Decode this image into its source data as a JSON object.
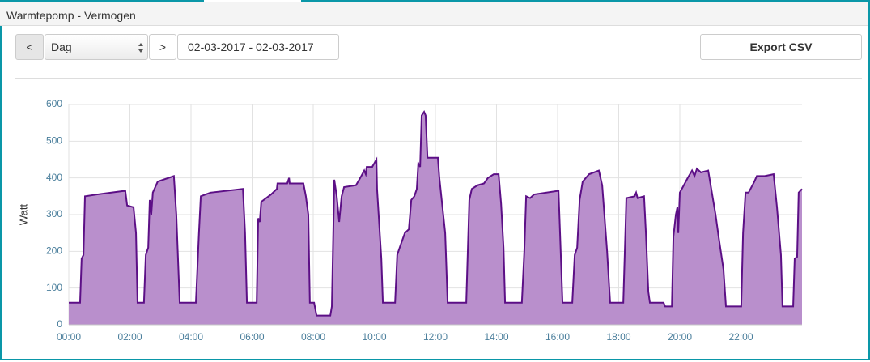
{
  "header": {
    "title": "Warmtepomp - Vermogen"
  },
  "controls": {
    "prev": "<",
    "period": "Dag",
    "next": ">",
    "date_range": "02-03-2017 - 02-03-2017",
    "export": "Export CSV"
  },
  "chart_data": {
    "type": "area",
    "ylabel": "Watt",
    "color": "#5c0f86",
    "fill": "#b98fcc",
    "grid": true,
    "xlim": [
      0,
      24
    ],
    "ylim": [
      0,
      600
    ],
    "yticks": [
      0,
      100,
      200,
      300,
      400,
      500,
      600
    ],
    "xticks": [
      {
        "value": 0,
        "label": "00:00"
      },
      {
        "value": 2,
        "label": "02:00"
      },
      {
        "value": 4,
        "label": "04:00"
      },
      {
        "value": 6,
        "label": "06:00"
      },
      {
        "value": 8,
        "label": "08:00"
      },
      {
        "value": 10,
        "label": "10:00"
      },
      {
        "value": 12,
        "label": "12:00"
      },
      {
        "value": 14,
        "label": "14:00"
      },
      {
        "value": 16,
        "label": "16:00"
      },
      {
        "value": 18,
        "label": "18:00"
      },
      {
        "value": 20,
        "label": "20:00"
      },
      {
        "value": 22,
        "label": "22:00"
      }
    ],
    "x": [
      0,
      0.37,
      0.42,
      0.48,
      0.53,
      0.93,
      1.85,
      1.91,
      2.12,
      2.2,
      2.25,
      2.46,
      2.52,
      2.6,
      2.65,
      2.7,
      2.75,
      2.91,
      3.44,
      3.52,
      3.63,
      4.16,
      4.26,
      4.32,
      4.64,
      5.7,
      5.77,
      5.83,
      6.15,
      6.2,
      6.25,
      6.3,
      6.62,
      6.81,
      6.83,
      7.15,
      7.21,
      7.23,
      7.68,
      7.76,
      7.84,
      7.89,
      8.03,
      8.11,
      8.56,
      8.61,
      8.69,
      8.77,
      8.85,
      8.93,
      9.01,
      9.4,
      9.54,
      9.67,
      9.72,
      9.75,
      9.93,
      10.07,
      10.09,
      10.23,
      10.28,
      10.68,
      10.75,
      10.83,
      11.0,
      11.13,
      11.21,
      11.31,
      11.39,
      11.44,
      11.5,
      11.55,
      11.63,
      11.68,
      11.74,
      12.08,
      12.13,
      12.32,
      12.4,
      13.01,
      13.06,
      13.11,
      13.19,
      13.38,
      13.59,
      13.72,
      13.91,
      14.07,
      14.15,
      14.23,
      14.28,
      14.83,
      14.91,
      14.97,
      15.1,
      15.23,
      16.03,
      16.08,
      16.16,
      16.48,
      16.56,
      16.64,
      16.72,
      16.82,
      17.03,
      17.35,
      17.46,
      17.62,
      17.72,
      18.15,
      18.2,
      18.25,
      18.52,
      18.57,
      18.62,
      18.83,
      18.89,
      18.97,
      19.02,
      19.47,
      19.52,
      19.74,
      19.79,
      19.87,
      19.92,
      19.95,
      20.0,
      20.13,
      20.26,
      20.4,
      20.48,
      20.56,
      20.69,
      20.93,
      21.01,
      21.17,
      21.27,
      21.43,
      21.51,
      22.01,
      22.07,
      22.15,
      22.25,
      22.44,
      22.52,
      22.78,
      23.07,
      23.18,
      23.31,
      23.36,
      23.71,
      23.76,
      23.84,
      23.89,
      24
    ],
    "values": [
      60,
      60,
      180,
      190,
      350,
      355,
      365,
      325,
      320,
      250,
      60,
      60,
      190,
      210,
      340,
      300,
      360,
      390,
      405,
      300,
      60,
      60,
      250,
      350,
      360,
      370,
      250,
      60,
      60,
      290,
      280,
      335,
      355,
      370,
      385,
      385,
      400,
      385,
      385,
      350,
      300,
      60,
      60,
      25,
      25,
      50,
      395,
      350,
      280,
      350,
      375,
      380,
      400,
      420,
      410,
      430,
      430,
      450,
      370,
      180,
      60,
      60,
      190,
      210,
      250,
      260,
      340,
      350,
      370,
      440,
      430,
      570,
      580,
      570,
      455,
      455,
      400,
      250,
      60,
      60,
      200,
      340,
      370,
      380,
      385,
      400,
      410,
      410,
      330,
      210,
      60,
      60,
      200,
      350,
      345,
      355,
      365,
      250,
      60,
      60,
      190,
      210,
      340,
      390,
      410,
      420,
      380,
      200,
      60,
      60,
      200,
      345,
      350,
      360,
      345,
      350,
      250,
      90,
      60,
      60,
      50,
      50,
      240,
      300,
      320,
      250,
      360,
      380,
      400,
      420,
      405,
      425,
      415,
      420,
      380,
      300,
      240,
      150,
      50,
      50,
      250,
      360,
      360,
      390,
      405,
      405,
      410,
      320,
      190,
      50,
      50,
      180,
      185,
      360,
      370
    ]
  }
}
